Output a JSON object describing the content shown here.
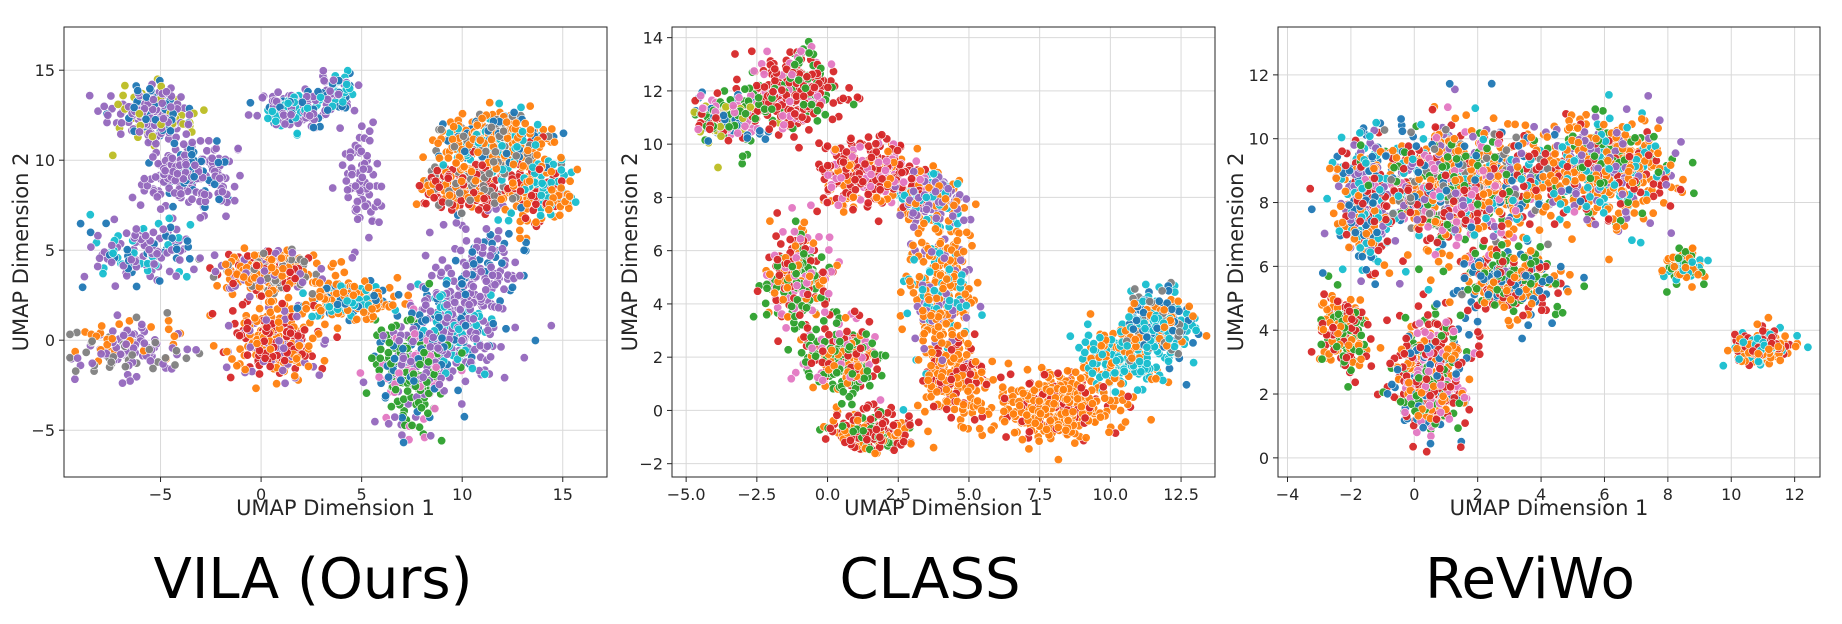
{
  "point_count_per_panel": 3200,
  "palette": [
    "#1f77b4",
    "#ff7f0e",
    "#2ca02c",
    "#d62728",
    "#9467bd",
    "#8c564b",
    "#e377c2",
    "#7f7f7f",
    "#bcbd22",
    "#17becf"
  ],
  "chart_data": [
    {
      "type": "scatter",
      "caption": "VILA (Ours)",
      "xlabel": "UMAP Dimension 1",
      "ylabel": "UMAP Dimension 2",
      "xlim": [
        -9.8,
        17.2
      ],
      "ylim": [
        -7.6,
        17.4
      ],
      "xticks": [
        -5,
        0,
        5,
        10,
        15
      ],
      "yticks": [
        -5,
        0,
        5,
        10,
        15
      ],
      "xtick_labels": [
        "−5",
        "0",
        "5",
        "10",
        "15"
      ],
      "ytick_labels": [
        "−5",
        "0",
        "5",
        "10",
        "15"
      ],
      "grid": true,
      "clusters": [
        {
          "center": [
            -5.5,
            12.5
          ],
          "spread": [
            1.6,
            1.3
          ],
          "weight": 3,
          "colors": [
            4,
            4,
            4,
            0,
            8
          ]
        },
        {
          "center": [
            -3.5,
            9.0
          ],
          "spread": [
            1.8,
            1.6
          ],
          "weight": 3,
          "colors": [
            4,
            4,
            4,
            4,
            0
          ]
        },
        {
          "center": [
            1.5,
            12.8
          ],
          "spread": [
            1.4,
            0.9
          ],
          "weight": 2,
          "colors": [
            4,
            4,
            0,
            9
          ]
        },
        {
          "center": [
            3.8,
            13.8
          ],
          "spread": [
            0.8,
            1.0
          ],
          "weight": 1,
          "colors": [
            0,
            4,
            9
          ]
        },
        {
          "center": [
            -6.0,
            5.0
          ],
          "spread": [
            2.0,
            1.5
          ],
          "weight": 2,
          "colors": [
            4,
            4,
            0,
            9
          ]
        },
        {
          "center": [
            -6.5,
            -0.5
          ],
          "spread": [
            2.2,
            1.3
          ],
          "weight": 2,
          "colors": [
            4,
            4,
            1,
            7
          ]
        },
        {
          "center": [
            0.5,
            3.8
          ],
          "spread": [
            2.2,
            1.0
          ],
          "weight": 4,
          "colors": [
            1,
            1,
            3,
            4,
            7
          ]
        },
        {
          "center": [
            0.5,
            0.0
          ],
          "spread": [
            1.8,
            1.8
          ],
          "weight": 4,
          "colors": [
            1,
            1,
            3,
            3,
            4
          ]
        },
        {
          "center": [
            4.5,
            2.2
          ],
          "spread": [
            2.0,
            0.8
          ],
          "weight": 3,
          "colors": [
            1,
            1,
            1,
            9,
            0
          ]
        },
        {
          "center": [
            7.5,
            -1.5
          ],
          "spread": [
            1.6,
            2.6
          ],
          "weight": 4,
          "colors": [
            2,
            2,
            4,
            0,
            6
          ]
        },
        {
          "center": [
            9.5,
            0.5
          ],
          "spread": [
            1.8,
            2.5
          ],
          "weight": 4,
          "colors": [
            4,
            4,
            4,
            0,
            9
          ]
        },
        {
          "center": [
            11.5,
            11.0
          ],
          "spread": [
            2.2,
            1.2
          ],
          "weight": 5,
          "colors": [
            1,
            1,
            1,
            9,
            7,
            0
          ]
        },
        {
          "center": [
            10.0,
            8.5
          ],
          "spread": [
            1.6,
            1.2
          ],
          "weight": 3,
          "colors": [
            3,
            3,
            1,
            7
          ]
        },
        {
          "center": [
            13.5,
            8.5
          ],
          "spread": [
            1.5,
            1.8
          ],
          "weight": 3,
          "colors": [
            1,
            1,
            3,
            9
          ]
        },
        {
          "center": [
            11.0,
            4.0
          ],
          "spread": [
            2.0,
            2.5
          ],
          "weight": 2,
          "colors": [
            4,
            4,
            0
          ]
        },
        {
          "center": [
            5.0,
            9.0
          ],
          "spread": [
            0.8,
            2.5
          ],
          "weight": 1,
          "colors": [
            4,
            4
          ]
        }
      ]
    },
    {
      "type": "scatter",
      "caption": "CLASS",
      "xlabel": "UMAP Dimension 1",
      "ylabel": "UMAP Dimension 2",
      "xlim": [
        -5.5,
        13.7
      ],
      "ylim": [
        -2.5,
        14.4
      ],
      "xticks": [
        -5.0,
        -2.5,
        0.0,
        2.5,
        5.0,
        7.5,
        10.0,
        12.5
      ],
      "yticks": [
        -2,
        0,
        2,
        4,
        6,
        8,
        10,
        12,
        14
      ],
      "xtick_labels": [
        "−5.0",
        "−2.5",
        "0.0",
        "2.5",
        "5.0",
        "7.5",
        "10.0",
        "12.5"
      ],
      "ytick_labels": [
        "−2",
        "0",
        "2",
        "4",
        "6",
        "8",
        "10",
        "12",
        "14"
      ],
      "grid": true,
      "clusters": [
        {
          "center": [
            -3.5,
            11.0
          ],
          "spread": [
            1.0,
            0.8
          ],
          "weight": 3,
          "colors": [
            0,
            2,
            8,
            3,
            6
          ]
        },
        {
          "center": [
            -1.2,
            12.0
          ],
          "spread": [
            1.2,
            1.2
          ],
          "weight": 5,
          "colors": [
            3,
            3,
            3,
            6,
            2
          ]
        },
        {
          "center": [
            1.5,
            8.8
          ],
          "spread": [
            1.6,
            1.0
          ],
          "weight": 5,
          "colors": [
            3,
            3,
            3,
            1,
            6
          ]
        },
        {
          "center": [
            3.5,
            8.0
          ],
          "spread": [
            1.0,
            0.8
          ],
          "weight": 3,
          "colors": [
            4,
            4,
            9,
            1
          ]
        },
        {
          "center": [
            -1.0,
            5.0
          ],
          "spread": [
            0.9,
            1.6
          ],
          "weight": 4,
          "colors": [
            3,
            2,
            2,
            1,
            6
          ]
        },
        {
          "center": [
            0.5,
            2.0
          ],
          "spread": [
            1.2,
            1.1
          ],
          "weight": 4,
          "colors": [
            2,
            2,
            3,
            6,
            1
          ]
        },
        {
          "center": [
            1.5,
            -0.8
          ],
          "spread": [
            1.3,
            0.7
          ],
          "weight": 3,
          "colors": [
            3,
            3,
            2,
            1
          ]
        },
        {
          "center": [
            4.0,
            4.5
          ],
          "spread": [
            1.0,
            2.2
          ],
          "weight": 5,
          "colors": [
            1,
            1,
            1,
            4,
            9
          ]
        },
        {
          "center": [
            4.5,
            1.2
          ],
          "spread": [
            1.0,
            1.2
          ],
          "weight": 3,
          "colors": [
            1,
            1,
            3
          ]
        },
        {
          "center": [
            8.0,
            0.2
          ],
          "spread": [
            1.8,
            1.0
          ],
          "weight": 6,
          "colors": [
            1,
            1,
            1,
            1,
            3
          ]
        },
        {
          "center": [
            10.5,
            2.0
          ],
          "spread": [
            1.2,
            1.0
          ],
          "weight": 3,
          "colors": [
            1,
            9,
            9
          ]
        },
        {
          "center": [
            11.7,
            3.2
          ],
          "spread": [
            1.0,
            1.0
          ],
          "weight": 4,
          "colors": [
            9,
            9,
            7,
            1,
            0
          ]
        }
      ]
    },
    {
      "type": "scatter",
      "caption": "ReViWo",
      "xlabel": "UMAP Dimension 1",
      "ylabel": "UMAP Dimension 2",
      "xlim": [
        -4.3,
        12.8
      ],
      "ylim": [
        -0.6,
        13.5
      ],
      "xticks": [
        -4,
        -2,
        0,
        2,
        4,
        6,
        8,
        10,
        12
      ],
      "yticks": [
        0,
        2,
        4,
        6,
        8,
        10,
        12
      ],
      "xtick_labels": [
        "−4",
        "−2",
        "0",
        "2",
        "4",
        "6",
        "8",
        "10",
        "12"
      ],
      "ytick_labels": [
        "0",
        "2",
        "4",
        "6",
        "8",
        "10",
        "12"
      ],
      "grid": true,
      "clusters": [
        {
          "center": [
            1.5,
            8.5
          ],
          "spread": [
            2.4,
            1.6
          ],
          "weight": 10,
          "colors": [
            1,
            1,
            1,
            3,
            3,
            0,
            4,
            9,
            2,
            6,
            7
          ]
        },
        {
          "center": [
            6.0,
            9.0
          ],
          "spread": [
            1.8,
            1.3
          ],
          "weight": 6,
          "colors": [
            1,
            1,
            1,
            3,
            2,
            4,
            9
          ]
        },
        {
          "center": [
            -1.5,
            8.0
          ],
          "spread": [
            0.8,
            1.6
          ],
          "weight": 3,
          "colors": [
            9,
            0,
            4,
            1,
            3
          ]
        },
        {
          "center": [
            0.5,
            2.5
          ],
          "spread": [
            1.0,
            1.5
          ],
          "weight": 5,
          "colors": [
            3,
            3,
            1,
            6,
            2,
            0
          ]
        },
        {
          "center": [
            3.0,
            5.5
          ],
          "spread": [
            1.4,
            0.9
          ],
          "weight": 3,
          "colors": [
            1,
            3,
            2,
            0
          ]
        },
        {
          "center": [
            -2.2,
            4.0
          ],
          "spread": [
            0.6,
            0.9
          ],
          "weight": 2,
          "colors": [
            3,
            1,
            2
          ]
        },
        {
          "center": [
            8.5,
            6.0
          ],
          "spread": [
            0.5,
            0.5
          ],
          "weight": 1,
          "colors": [
            1,
            2,
            9
          ]
        },
        {
          "center": [
            11.0,
            3.5
          ],
          "spread": [
            0.8,
            0.4
          ],
          "weight": 2,
          "colors": [
            1,
            1,
            3,
            9
          ]
        }
      ]
    }
  ]
}
